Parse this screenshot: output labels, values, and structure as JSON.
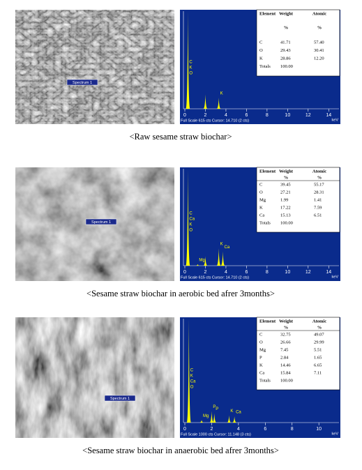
{
  "panels": [
    {
      "sem_label": "Spectrum 1",
      "table": {
        "header": [
          "Element",
          "Weight",
          "Atomic"
        ],
        "units": [
          "%",
          "%"
        ],
        "rows": [
          [
            "C",
            "41.71",
            "57.40"
          ],
          [
            "O",
            "29.43",
            "30.41"
          ],
          [
            "K",
            "28.86",
            "12.20"
          ],
          [
            "Totals",
            "100.00"
          ]
        ]
      },
      "xlim": [
        0,
        15
      ],
      "xticks": [
        0,
        2,
        4,
        6,
        8,
        10,
        12,
        14
      ],
      "ylim": [
        0,
        615
      ],
      "x_unit": "keV",
      "peaks": [
        {
          "kev": 0.3,
          "counts": 615,
          "labels": [
            "C",
            "K",
            "O"
          ]
        },
        {
          "kev": 2.0,
          "counts": 90,
          "labels": []
        },
        {
          "kev": 3.3,
          "counts": 70,
          "labels": [
            "K"
          ]
        }
      ],
      "footer": "Full Scale 615 cts Cursor: 14.710 (2 cts)",
      "caption": "<Raw sesame straw biochar>"
    },
    {
      "sem_label": "Spectrum 1",
      "table": {
        "header": [
          "Element",
          "Weight",
          "Atomic"
        ],
        "units": [
          "%",
          "%"
        ],
        "rows": [
          [
            "C",
            "39.45",
            "55.17"
          ],
          [
            "O",
            "27.21",
            "28.31"
          ],
          [
            "Mg",
            "1.99",
            "1.41"
          ],
          [
            "K",
            "17.22",
            "7.59"
          ],
          [
            "Ca",
            "15.13",
            "6.51"
          ],
          [
            "Totals",
            "100.00"
          ]
        ]
      },
      "xlim": [
        0,
        15
      ],
      "xticks": [
        0,
        2,
        4,
        6,
        8,
        10,
        12,
        14
      ],
      "ylim": [
        0,
        615
      ],
      "x_unit": "keV",
      "peaks": [
        {
          "kev": 0.3,
          "counts": 615,
          "labels": [
            "C",
            "Ca",
            "K",
            "O"
          ]
        },
        {
          "kev": 1.25,
          "counts": 10,
          "labels": [
            "Mg"
          ]
        },
        {
          "kev": 2.0,
          "counts": 60,
          "labels": []
        },
        {
          "kev": 3.3,
          "counts": 110,
          "labels": [
            "K"
          ]
        },
        {
          "kev": 3.7,
          "counts": 90,
          "labels": [
            "Ca"
          ]
        }
      ],
      "footer": "Full Scale 615 cts Cursor: 14.710 (2 cts)",
      "caption": "<Sesame straw biochar in aerobic bed afrer 3months>"
    },
    {
      "sem_label": "Spectrum 1",
      "table": {
        "header": [
          "Element",
          "Weight",
          "Atomic"
        ],
        "units": [
          "%",
          "%"
        ],
        "rows": [
          [
            "C",
            "32.75",
            "49.07"
          ],
          [
            "O",
            "26.66",
            "29.99"
          ],
          [
            "Mg",
            "7.45",
            "5.51"
          ],
          [
            "P",
            "2.84",
            "1.65"
          ],
          [
            "K",
            "14.46",
            "6.65"
          ],
          [
            "Ca",
            "15.84",
            "7.11"
          ],
          [
            "Totals",
            "100.00"
          ]
        ]
      },
      "xlim": [
        0,
        11.5
      ],
      "xticks": [
        0,
        2,
        4,
        6,
        8,
        10
      ],
      "ylim": [
        0,
        1000
      ],
      "x_unit": "keV",
      "peaks": [
        {
          "kev": 0.3,
          "counts": 1000,
          "labels": [
            "C",
            "K",
            "Ca",
            "O"
          ]
        },
        {
          "kev": 1.25,
          "counts": 25,
          "labels": [
            "Mg"
          ]
        },
        {
          "kev": 2.0,
          "counts": 110,
          "labels": [
            "P"
          ]
        },
        {
          "kev": 2.2,
          "counts": 90,
          "labels": [
            "P"
          ]
        },
        {
          "kev": 3.3,
          "counts": 70,
          "labels": [
            "K"
          ]
        },
        {
          "kev": 3.7,
          "counts": 60,
          "labels": [
            "Ca"
          ]
        }
      ],
      "footer": "Full Scale 1000 cts Cursor: 11.148 (3 cts)",
      "caption": "<Sesame straw biochar in anaerobic bed afrer 3months>"
    }
  ]
}
